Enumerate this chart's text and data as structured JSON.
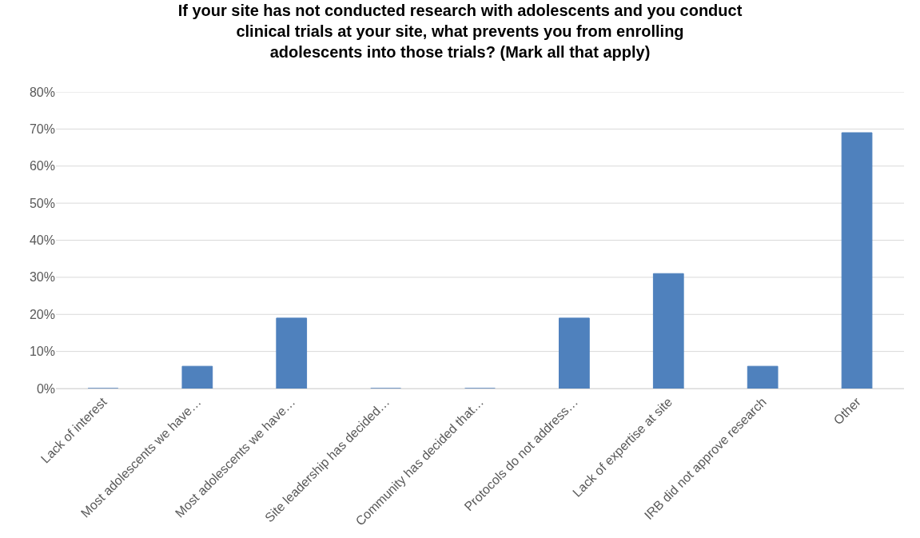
{
  "chart_data": {
    "type": "bar",
    "title": "If your site has not conducted research with adolescents and you conduct clinical trials at your site, what prevents you from enrolling adolescents into those trials? (Mark all that apply)",
    "categories": [
      "Lack of interest",
      "Most adolescents we have…",
      "Most adolescents we have…",
      "Site leadership has decided…",
      "Community has decided that…",
      "Protocols do not address…",
      "Lack of expertise at site",
      "IRB did not approve research",
      "Other"
    ],
    "values": [
      0,
      6,
      19,
      0,
      0,
      19,
      31,
      6,
      69
    ],
    "color": "#4f81bd",
    "ylim": [
      0,
      80
    ],
    "yticks": [
      {
        "value": 0,
        "label": "0%"
      },
      {
        "value": 10,
        "label": "10%"
      },
      {
        "value": 20,
        "label": "20%"
      },
      {
        "value": 30,
        "label": "30%"
      },
      {
        "value": 40,
        "label": "40%"
      },
      {
        "value": 50,
        "label": "50%"
      },
      {
        "value": 60,
        "label": "60%"
      },
      {
        "value": 70,
        "label": "70%"
      },
      {
        "value": 80,
        "label": "80%"
      }
    ],
    "grid": "y"
  }
}
